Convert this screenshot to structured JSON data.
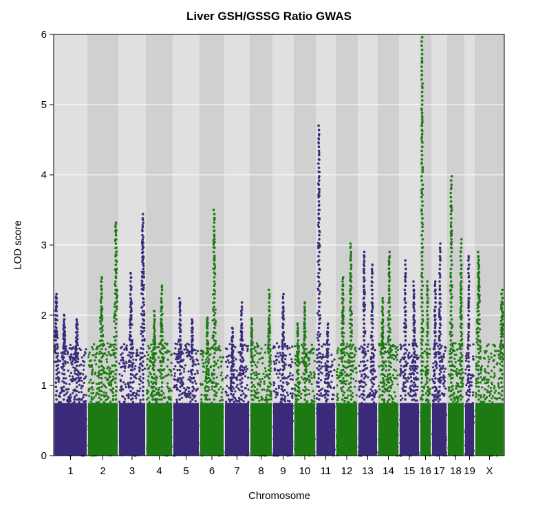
{
  "chart_data": {
    "type": "scatter",
    "title": "Liver GSH/GSSG Ratio GWAS",
    "xlabel": "Chromosome",
    "ylabel": "LOD score",
    "ylim": [
      0,
      6
    ],
    "yticks": [
      "0",
      "1",
      "2",
      "3",
      "4",
      "5",
      "6"
    ],
    "grid": true,
    "colors": {
      "odd": "#3b2a7a",
      "even": "#1d7a12",
      "band_light": "#e0e0e0",
      "band_dark": "#d0d0d0",
      "gridline": "#ffffff"
    },
    "chromosomes": [
      {
        "label": "1",
        "peak_lod": 2.33,
        "peaks": [
          [
            0.05,
            2.33
          ],
          [
            0.3,
            2.05
          ],
          [
            0.7,
            2.0
          ]
        ]
      },
      {
        "label": "2",
        "peak_lod": 3.37,
        "peaks": [
          [
            0.45,
            2.6
          ],
          [
            0.95,
            3.37
          ]
        ]
      },
      {
        "label": "3",
        "peak_lod": 3.45,
        "peaks": [
          [
            0.45,
            2.65
          ],
          [
            0.92,
            3.45
          ]
        ]
      },
      {
        "label": "4",
        "peak_lod": 2.43,
        "peaks": [
          [
            0.6,
            2.43
          ],
          [
            0.3,
            2.1
          ]
        ]
      },
      {
        "label": "5",
        "peak_lod": 2.25,
        "peaks": [
          [
            0.25,
            2.25
          ],
          [
            0.75,
            2.0
          ]
        ]
      },
      {
        "label": "6",
        "peak_lod": 3.52,
        "peaks": [
          [
            0.6,
            3.52
          ],
          [
            0.3,
            2.0
          ]
        ]
      },
      {
        "label": "7",
        "peak_lod": 2.22,
        "peaks": [
          [
            0.7,
            2.22
          ],
          [
            0.3,
            1.85
          ]
        ]
      },
      {
        "label": "8",
        "peak_lod": 2.38,
        "peaks": [
          [
            0.05,
            2.0
          ],
          [
            0.9,
            2.38
          ]
        ]
      },
      {
        "label": "9",
        "peak_lod": 2.32,
        "peaks": [
          [
            0.5,
            2.32
          ]
        ]
      },
      {
        "label": "10",
        "peak_lod": 2.2,
        "peaks": [
          [
            0.5,
            2.2
          ],
          [
            0.15,
            1.9
          ]
        ]
      },
      {
        "label": "11",
        "peak_lod": 4.72,
        "peaks": [
          [
            0.12,
            4.72
          ],
          [
            0.6,
            1.9
          ]
        ]
      },
      {
        "label": "12",
        "peak_lod": 3.08,
        "peaks": [
          [
            0.7,
            3.08
          ],
          [
            0.3,
            2.6
          ]
        ]
      },
      {
        "label": "13",
        "peak_lod": 2.95,
        "peaks": [
          [
            0.3,
            2.95
          ],
          [
            0.75,
            2.75
          ]
        ]
      },
      {
        "label": "14",
        "peak_lod": 2.95,
        "peaks": [
          [
            0.55,
            2.95
          ],
          [
            0.2,
            2.3
          ]
        ]
      },
      {
        "label": "15",
        "peak_lod": 2.82,
        "peaks": [
          [
            0.28,
            2.82
          ],
          [
            0.75,
            2.5
          ]
        ]
      },
      {
        "label": "16",
        "peak_lod": 5.97,
        "peaks": [
          [
            0.15,
            5.97
          ],
          [
            0.7,
            2.5
          ]
        ]
      },
      {
        "label": "17",
        "peak_lod": 3.07,
        "peaks": [
          [
            0.55,
            3.07
          ],
          [
            0.2,
            2.5
          ]
        ]
      },
      {
        "label": "18",
        "peak_lod": 4.02,
        "peaks": [
          [
            0.2,
            4.02
          ],
          [
            0.85,
            3.1
          ]
        ]
      },
      {
        "label": "19",
        "peak_lod": 2.85,
        "peaks": [
          [
            0.4,
            2.85
          ]
        ]
      },
      {
        "label": "X",
        "peak_lod": 2.92,
        "peaks": [
          [
            0.1,
            2.92
          ],
          [
            0.95,
            2.38
          ]
        ]
      }
    ]
  }
}
